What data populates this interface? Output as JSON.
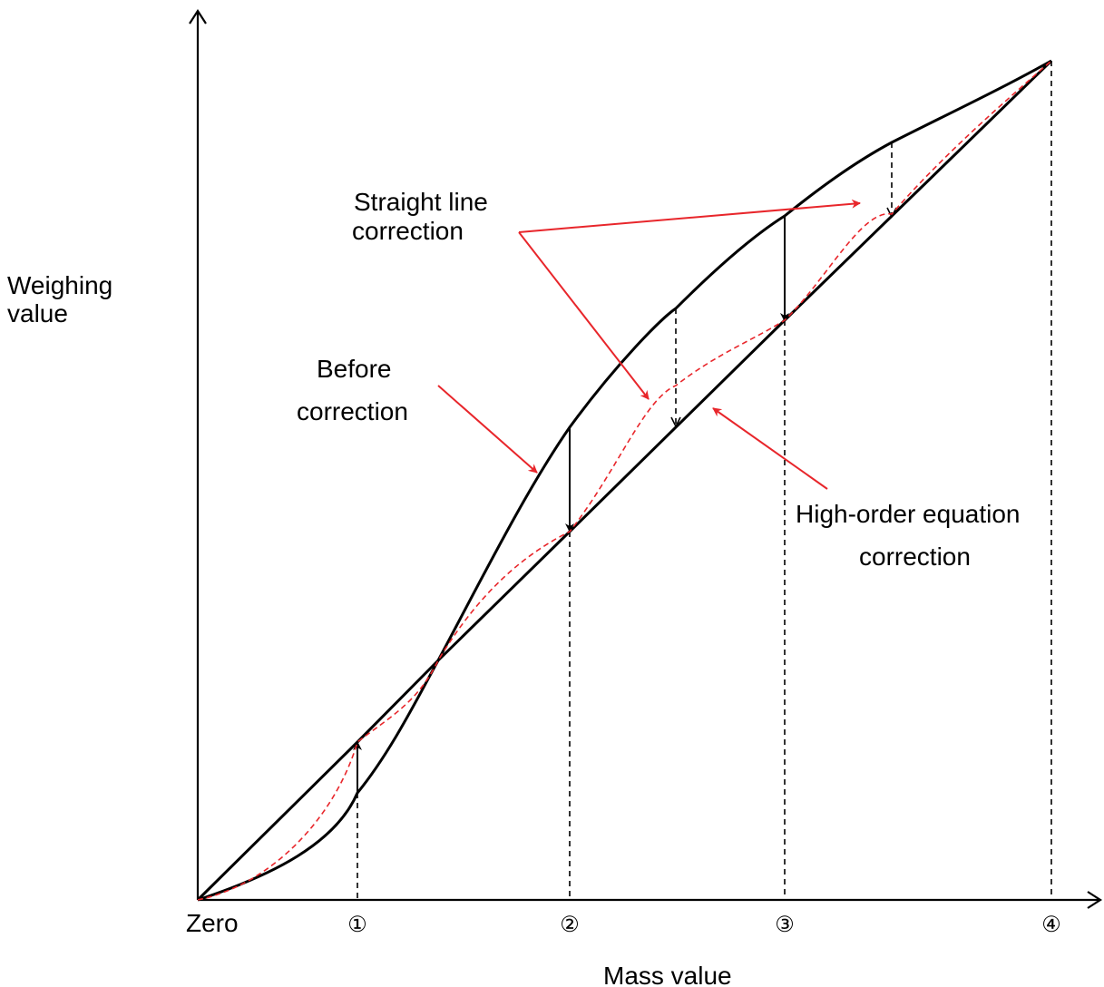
{
  "axes": {
    "y_label_line1": "Weighing",
    "y_label_line2": "value",
    "x_label": "Mass value",
    "origin_label": "Zero",
    "ticks": [
      "①",
      "②",
      "③",
      "④"
    ]
  },
  "annotations": {
    "straight_line_1": "Straight line",
    "straight_line_2": "correction",
    "before_1": "Before",
    "before_2": "correction",
    "high_order_1": "High-order equation",
    "high_order_2": "correction"
  },
  "colors": {
    "curve": "#000000",
    "annotation_arrow": "#e8262b",
    "corrected_curve": "#e8262b"
  }
}
